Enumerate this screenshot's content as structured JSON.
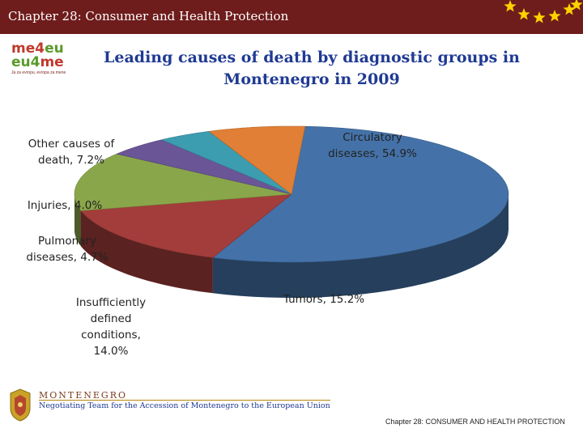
{
  "header": {
    "title": "Chapter 28: Consumer and Health Protection",
    "bar_color": "#6f1c1c",
    "star_color": "#ffd200"
  },
  "logo": {
    "line1_a": "me4",
    "line1_b": "eu",
    "line2_a": "eu4",
    "line2_b": "me",
    "tagline": "Ja za evropu, evropa za mene"
  },
  "chart_data": {
    "type": "pie",
    "title": "Leading causes of death by diagnostic groups in Montenegro in 2009",
    "title_lines": [
      "Leading causes of death by diagnostic groups in",
      "Montenegro in 2009"
    ],
    "three_d": true,
    "slices": [
      {
        "name": "Circulatory diseases",
        "value": 54.9,
        "label": "Circulatory diseases, 54.9%",
        "label_lines": [
          "Circulatory",
          "diseases, 54.9%"
        ],
        "color": "#4472a8"
      },
      {
        "name": "Tumors",
        "value": 15.2,
        "label": "Tumors, 15.2%",
        "label_lines": [
          "Tumors, 15.2%"
        ],
        "color": "#a33d3b"
      },
      {
        "name": "Insufficiently defined conditions",
        "value": 14.0,
        "label": "Insufficiently defined conditions, 14.0%",
        "label_lines": [
          "Insufficiently",
          "defined",
          "conditions,",
          "14.0%"
        ],
        "color": "#8aa64a"
      },
      {
        "name": "Pulmonary diseases",
        "value": 4.7,
        "label": "Pulmonary diseases, 4.7%",
        "label_lines": [
          "Pulmonary",
          "diseases, 4.7%"
        ],
        "color": "#6a5596"
      },
      {
        "name": "Injuries",
        "value": 4.0,
        "label": "Injuries, 4.0%",
        "label_lines": [
          "Injuries, 4.0%"
        ],
        "color": "#3c9cb0"
      },
      {
        "name": "Other causes of death",
        "value": 7.2,
        "label": "Other causes of death, 7.2%",
        "label_lines": [
          "Other causes of",
          "death, 7.2%"
        ],
        "color": "#e07f35"
      }
    ]
  },
  "footer": {
    "country": "MONTENEGRO",
    "team": "Negotiating Team for the Accession of Montenegro to the European Union",
    "chapter": "Chapter 28: CONSUMER AND HEALTH PROTECTION"
  }
}
